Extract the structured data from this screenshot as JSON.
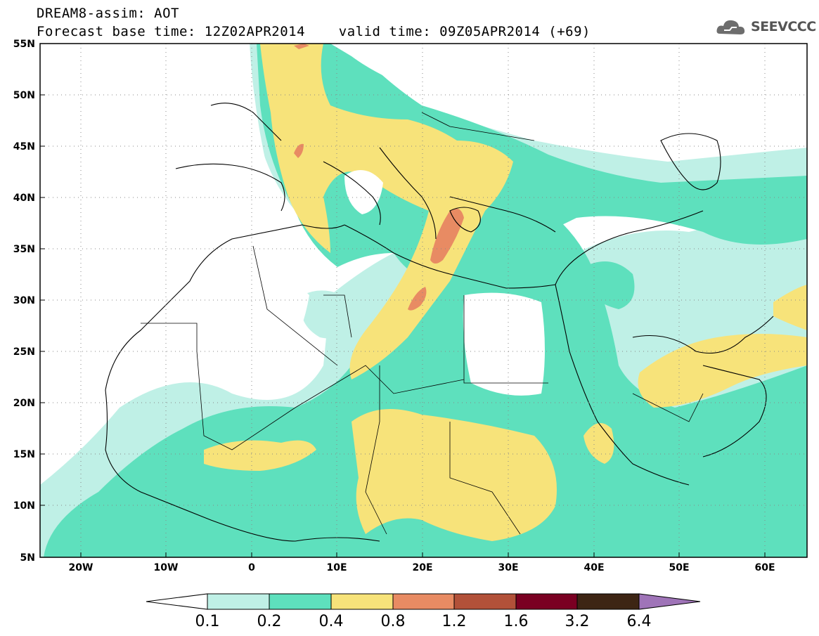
{
  "title": {
    "line1": "DREAM8-assim: AOT",
    "line2": "Forecast base time: 12Z02APR2014    valid time: 09Z05APR2014 (+69)"
  },
  "logo": {
    "text": "SEEVCCC",
    "icon": "cloud-icon"
  },
  "map": {
    "lon_range": [
      -25,
      65
    ],
    "lat_range": [
      5,
      55
    ],
    "lat_labels": [
      "55N",
      "50N",
      "45N",
      "40N",
      "35N",
      "30N",
      "25N",
      "20N",
      "15N",
      "10N",
      "5N"
    ],
    "lon_labels": [
      "20W",
      "10W",
      "0",
      "10E",
      "20E",
      "30E",
      "40E",
      "50E",
      "60E"
    ],
    "grid": true
  },
  "colorbar": {
    "levels": [
      "0.1",
      "0.2",
      "0.4",
      "0.8",
      "1.2",
      "1.6",
      "3.2",
      "6.4"
    ],
    "colors": [
      "#ffffff",
      "#bff0e6",
      "#5ee0bd",
      "#f7e37a",
      "#e88b63",
      "#b25139",
      "#7a0022",
      "#3d2514",
      "#9f74b8"
    ]
  }
}
